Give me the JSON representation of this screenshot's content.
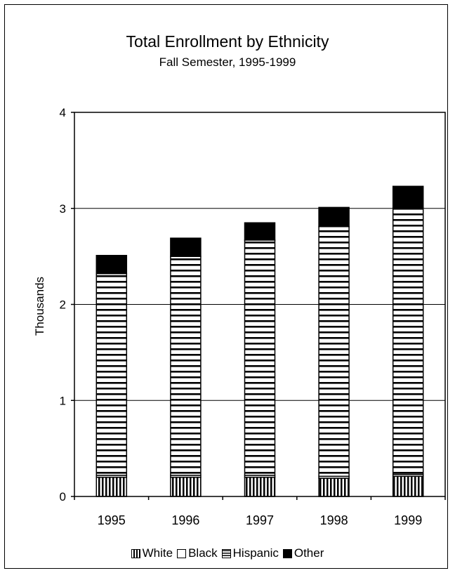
{
  "chart_data": {
    "type": "bar",
    "stacked": true,
    "title": "Total Enrollment by Ethnicity",
    "subtitle": "Fall Semester, 1995-1999",
    "xlabel": "",
    "ylabel": "Thousands",
    "ylim": [
      0,
      4
    ],
    "yticks": [
      "0",
      "1",
      "2",
      "3",
      "4"
    ],
    "categories": [
      "1995",
      "1996",
      "1997",
      "1998",
      "1999"
    ],
    "series": [
      {
        "name": "White",
        "values": [
          0.2,
          0.2,
          0.2,
          0.19,
          0.21
        ]
      },
      {
        "name": "Black",
        "values": [
          0.02,
          0.02,
          0.02,
          0.02,
          0.02
        ]
      },
      {
        "name": "Hispanic",
        "values": [
          2.1,
          2.28,
          2.45,
          2.6,
          2.78
        ]
      },
      {
        "name": "Other",
        "values": [
          0.19,
          0.19,
          0.18,
          0.2,
          0.22
        ]
      }
    ],
    "grid": true,
    "legend_position": "bottom"
  },
  "colors": {
    "White": "vertical-stripes",
    "Black": "#ffffff",
    "Hispanic": "horizontal-stripes",
    "Other": "#000000"
  }
}
